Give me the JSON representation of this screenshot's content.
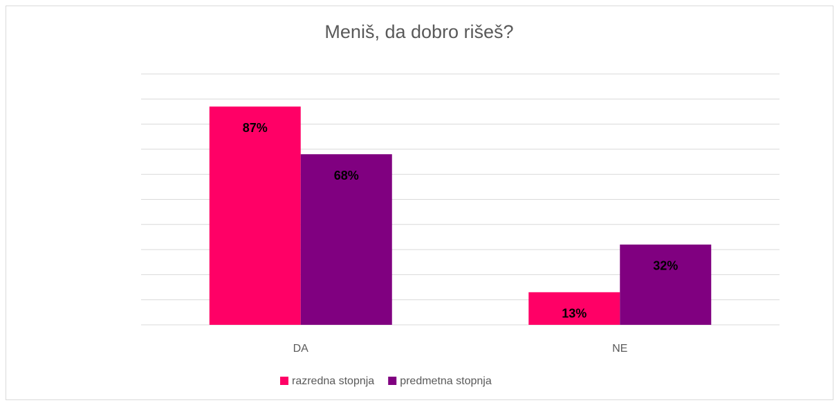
{
  "chart_data": {
    "type": "bar",
    "title": "Meniš, da dobro rišeš?",
    "categories": [
      "DA",
      "NE"
    ],
    "series": [
      {
        "name": "razredna stopnja",
        "color": "#ff0066",
        "values": [
          87,
          13
        ],
        "value_labels": [
          "87%",
          "13%"
        ]
      },
      {
        "name": "predmetna stopnja",
        "color": "#800080",
        "values": [
          68,
          32
        ],
        "value_labels": [
          "68%",
          "32%"
        ]
      }
    ],
    "ylim": [
      0,
      100
    ],
    "yticks": [
      0,
      10,
      20,
      30,
      40,
      50,
      60,
      70,
      80,
      90,
      100
    ],
    "grid": true,
    "legend": "bottom"
  }
}
